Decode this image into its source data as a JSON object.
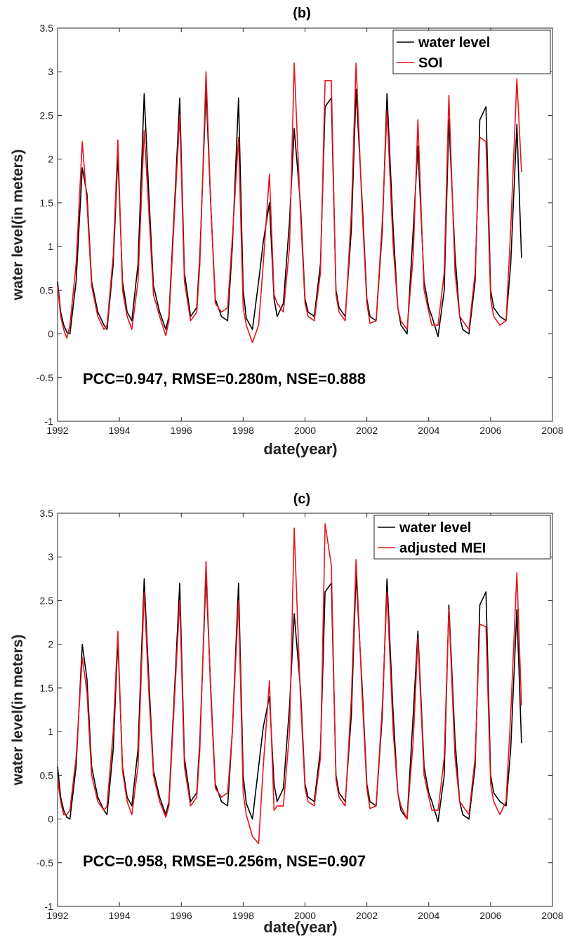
{
  "chart_data": [
    {
      "type": "line",
      "title": "(b)",
      "xlabel": "date(year)",
      "ylabel": "water level(in meters)",
      "xlim": [
        1992,
        2008
      ],
      "ylim": [
        -1,
        3.5
      ],
      "x_ticks": [
        "1992",
        "1994",
        "1996",
        "1998",
        "2000",
        "2002",
        "2004",
        "2006",
        "2008"
      ],
      "y_ticks": [
        "-1",
        "-0.5",
        "0",
        "0.5",
        "1",
        "1.5",
        "2",
        "2.5",
        "3",
        "3.5"
      ],
      "grid": false,
      "legend_position": "top-right",
      "annotation": "PCC=0.947, RMSE=0.280m, NSE=0.888",
      "series": [
        {
          "name": "water level",
          "color": "#000000",
          "x": [
            1992.0,
            1992.1,
            1992.2,
            1992.3,
            1992.4,
            1992.6,
            1992.8,
            1992.95,
            1993.1,
            1993.3,
            1993.5,
            1993.6,
            1993.8,
            1993.95,
            1994.1,
            1994.25,
            1994.4,
            1994.6,
            1994.8,
            1994.95,
            1995.1,
            1995.3,
            1995.5,
            1995.6,
            1995.8,
            1995.95,
            1996.1,
            1996.3,
            1996.5,
            1996.6,
            1996.8,
            1996.95,
            1997.1,
            1997.3,
            1997.5,
            1997.65,
            1997.85,
            1998.0,
            1998.1,
            1998.3,
            1998.5,
            1998.65,
            1998.85,
            1999.0,
            1999.1,
            1999.3,
            1999.5,
            1999.65,
            1999.85,
            2000.0,
            2000.1,
            2000.3,
            2000.5,
            2000.65,
            2000.85,
            2001.0,
            2001.1,
            2001.3,
            2001.5,
            2001.65,
            2001.85,
            2002.0,
            2002.1,
            2002.3,
            2002.5,
            2002.65,
            2002.85,
            2003.0,
            2003.1,
            2003.3,
            2003.5,
            2003.65,
            2003.85,
            2004.0,
            2004.1,
            2004.3,
            2004.5,
            2004.65,
            2004.85,
            2005.0,
            2005.1,
            2005.3,
            2005.5,
            2005.65,
            2005.85,
            2006.0,
            2006.1,
            2006.3,
            2006.5,
            2006.65,
            2006.85,
            2007.0
          ],
          "y": [
            0.6,
            0.25,
            0.1,
            0.02,
            0.0,
            0.6,
            1.9,
            1.6,
            0.6,
            0.25,
            0.1,
            0.05,
            0.8,
            2.05,
            0.6,
            0.25,
            0.15,
            0.8,
            2.75,
            1.6,
            0.55,
            0.25,
            0.05,
            0.2,
            1.6,
            2.7,
            0.7,
            0.2,
            0.3,
            0.9,
            2.8,
            1.5,
            0.4,
            0.2,
            0.15,
            1.0,
            2.7,
            0.5,
            0.18,
            0.05,
            0.6,
            1.05,
            1.5,
            0.4,
            0.2,
            0.35,
            1.3,
            2.35,
            1.5,
            0.4,
            0.25,
            0.2,
            0.8,
            2.6,
            2.7,
            0.5,
            0.3,
            0.2,
            1.2,
            2.8,
            1.5,
            0.4,
            0.2,
            0.15,
            1.2,
            2.75,
            1.2,
            0.3,
            0.1,
            0.0,
            1.2,
            2.15,
            0.6,
            0.3,
            0.2,
            -0.03,
            0.5,
            2.45,
            0.9,
            0.2,
            0.05,
            0.0,
            0.6,
            2.45,
            2.6,
            0.5,
            0.3,
            0.2,
            0.15,
            0.8,
            2.4,
            0.87
          ]
        },
        {
          "name": "SOI",
          "color": "#e8141b",
          "x": [
            1992.0,
            1992.1,
            1992.2,
            1992.3,
            1992.4,
            1992.6,
            1992.8,
            1992.95,
            1993.1,
            1993.3,
            1993.5,
            1993.6,
            1993.8,
            1993.95,
            1994.1,
            1994.25,
            1994.4,
            1994.6,
            1994.8,
            1994.95,
            1995.1,
            1995.3,
            1995.5,
            1995.6,
            1995.8,
            1995.95,
            1996.1,
            1996.3,
            1996.5,
            1996.6,
            1996.8,
            1996.95,
            1997.1,
            1997.3,
            1997.5,
            1997.65,
            1997.85,
            1998.0,
            1998.1,
            1998.3,
            1998.5,
            1998.65,
            1998.85,
            1999.0,
            1999.1,
            1999.3,
            1999.5,
            1999.65,
            1999.85,
            2000.0,
            2000.1,
            2000.3,
            2000.5,
            2000.65,
            2000.85,
            2001.0,
            2001.1,
            2001.3,
            2001.5,
            2001.65,
            2001.85,
            2002.0,
            2002.1,
            2002.3,
            2002.5,
            2002.65,
            2002.85,
            2003.0,
            2003.1,
            2003.3,
            2003.5,
            2003.65,
            2003.85,
            2004.0,
            2004.1,
            2004.3,
            2004.5,
            2004.65,
            2004.85,
            2005.0,
            2005.1,
            2005.3,
            2005.5,
            2005.65,
            2005.85,
            2006.0,
            2006.1,
            2006.3,
            2006.5,
            2006.65,
            2006.85,
            2007.0
          ],
          "y": [
            0.55,
            0.2,
            0.05,
            -0.05,
            0.1,
            0.8,
            2.2,
            1.5,
            0.55,
            0.2,
            0.05,
            0.1,
            0.9,
            2.22,
            0.5,
            0.2,
            0.05,
            0.6,
            2.33,
            1.4,
            0.45,
            0.2,
            -0.02,
            0.15,
            1.5,
            2.5,
            0.6,
            0.15,
            0.25,
            0.8,
            3.0,
            1.5,
            0.35,
            0.25,
            0.3,
            1.1,
            2.25,
            0.3,
            0.1,
            -0.1,
            0.1,
            0.8,
            1.83,
            0.45,
            0.35,
            0.25,
            1.0,
            3.1,
            1.4,
            0.35,
            0.2,
            0.15,
            0.7,
            2.9,
            2.9,
            0.45,
            0.25,
            0.15,
            1.4,
            3.1,
            1.4,
            0.35,
            0.12,
            0.15,
            1.3,
            2.55,
            1.0,
            0.3,
            0.15,
            0.05,
            0.9,
            2.45,
            0.5,
            0.25,
            0.1,
            0.1,
            0.7,
            2.73,
            0.7,
            0.2,
            0.15,
            0.05,
            0.7,
            2.25,
            2.2,
            0.4,
            0.2,
            0.1,
            0.15,
            1.2,
            2.92,
            1.85
          ]
        }
      ]
    },
    {
      "type": "line",
      "title": "(c)",
      "xlabel": "date(year)",
      "ylabel": "water level(in meters)",
      "xlim": [
        1992,
        2008
      ],
      "ylim": [
        -1,
        3.5
      ],
      "x_ticks": [
        "1992",
        "1994",
        "1996",
        "1998",
        "2000",
        "2002",
        "2004",
        "2006",
        "2008"
      ],
      "y_ticks": [
        "-1",
        "-0.5",
        "0",
        "0.5",
        "1",
        "1.5",
        "2",
        "2.5",
        "3",
        "3.5"
      ],
      "grid": false,
      "legend_position": "top-right",
      "annotation": "PCC=0.958, RMSE=0.256m, NSE=0.907",
      "series": [
        {
          "name": "water level",
          "color": "#000000",
          "x": [
            1992.0,
            1992.1,
            1992.2,
            1992.3,
            1992.4,
            1992.6,
            1992.8,
            1992.95,
            1993.1,
            1993.3,
            1993.5,
            1993.6,
            1993.8,
            1993.95,
            1994.1,
            1994.25,
            1994.4,
            1994.6,
            1994.8,
            1994.95,
            1995.1,
            1995.3,
            1995.5,
            1995.6,
            1995.8,
            1995.95,
            1996.1,
            1996.3,
            1996.5,
            1996.6,
            1996.8,
            1996.95,
            1997.1,
            1997.3,
            1997.5,
            1997.65,
            1997.85,
            1998.0,
            1998.1,
            1998.3,
            1998.5,
            1998.65,
            1998.85,
            1999.0,
            1999.1,
            1999.3,
            1999.5,
            1999.65,
            1999.85,
            2000.0,
            2000.1,
            2000.3,
            2000.5,
            2000.65,
            2000.85,
            2001.0,
            2001.1,
            2001.3,
            2001.5,
            2001.65,
            2001.85,
            2002.0,
            2002.1,
            2002.3,
            2002.5,
            2002.65,
            2002.85,
            2003.0,
            2003.1,
            2003.3,
            2003.5,
            2003.65,
            2003.85,
            2004.0,
            2004.1,
            2004.3,
            2004.5,
            2004.65,
            2004.85,
            2005.0,
            2005.1,
            2005.3,
            2005.5,
            2005.65,
            2005.85,
            2006.0,
            2006.1,
            2006.3,
            2006.5,
            2006.65,
            2006.85,
            2007.0
          ],
          "y": [
            0.6,
            0.25,
            0.1,
            0.02,
            0.0,
            0.6,
            2.0,
            1.6,
            0.6,
            0.25,
            0.1,
            0.05,
            0.8,
            2.05,
            0.6,
            0.25,
            0.15,
            0.8,
            2.75,
            1.6,
            0.55,
            0.25,
            0.05,
            0.2,
            1.6,
            2.7,
            0.7,
            0.2,
            0.3,
            0.9,
            2.8,
            1.5,
            0.4,
            0.2,
            0.15,
            1.0,
            2.7,
            0.5,
            0.18,
            0.0,
            0.6,
            1.05,
            1.4,
            0.4,
            0.2,
            0.35,
            1.3,
            2.35,
            1.5,
            0.4,
            0.25,
            0.2,
            0.8,
            2.6,
            2.7,
            0.5,
            0.3,
            0.2,
            1.2,
            2.8,
            1.5,
            0.4,
            0.2,
            0.15,
            1.2,
            2.75,
            1.2,
            0.3,
            0.1,
            0.0,
            1.2,
            2.15,
            0.6,
            0.3,
            0.2,
            -0.03,
            0.5,
            2.45,
            0.9,
            0.2,
            0.05,
            0.0,
            0.6,
            2.45,
            2.6,
            0.5,
            0.3,
            0.2,
            0.15,
            0.8,
            2.4,
            0.87
          ]
        },
        {
          "name": "adjusted MEI",
          "color": "#e8141b",
          "x": [
            1992.0,
            1992.1,
            1992.2,
            1992.3,
            1992.4,
            1992.6,
            1992.8,
            1992.95,
            1993.1,
            1993.3,
            1993.5,
            1993.6,
            1993.8,
            1993.95,
            1994.1,
            1994.25,
            1994.4,
            1994.6,
            1994.8,
            1994.95,
            1995.1,
            1995.3,
            1995.5,
            1995.6,
            1995.8,
            1995.95,
            1996.1,
            1996.3,
            1996.5,
            1996.6,
            1996.8,
            1996.95,
            1997.1,
            1997.3,
            1997.5,
            1997.65,
            1997.85,
            1998.0,
            1998.1,
            1998.3,
            1998.5,
            1998.65,
            1998.85,
            1999.0,
            1999.1,
            1999.3,
            1999.5,
            1999.65,
            1999.85,
            2000.0,
            2000.1,
            2000.3,
            2000.5,
            2000.65,
            2000.85,
            2001.0,
            2001.1,
            2001.3,
            2001.5,
            2001.65,
            2001.85,
            2002.0,
            2002.1,
            2002.3,
            2002.5,
            2002.65,
            2002.85,
            2003.0,
            2003.1,
            2003.3,
            2003.5,
            2003.65,
            2003.85,
            2004.0,
            2004.1,
            2004.3,
            2004.5,
            2004.65,
            2004.85,
            2005.0,
            2005.1,
            2005.3,
            2005.5,
            2005.65,
            2005.85,
            2006.0,
            2006.1,
            2006.3,
            2006.5,
            2006.65,
            2006.85,
            2007.0
          ],
          "y": [
            0.45,
            0.2,
            0.05,
            0.05,
            0.1,
            0.7,
            1.85,
            1.45,
            0.5,
            0.2,
            0.1,
            0.15,
            1.0,
            2.15,
            0.55,
            0.2,
            0.05,
            0.6,
            2.6,
            1.45,
            0.5,
            0.2,
            0.02,
            0.15,
            1.5,
            2.5,
            0.6,
            0.15,
            0.25,
            0.8,
            2.95,
            1.45,
            0.35,
            0.25,
            0.3,
            1.0,
            2.5,
            0.3,
            0.05,
            -0.2,
            -0.28,
            0.6,
            1.58,
            0.1,
            0.15,
            0.15,
            1.0,
            3.33,
            1.4,
            0.35,
            0.2,
            0.15,
            0.7,
            3.38,
            2.9,
            0.45,
            0.25,
            0.15,
            1.4,
            2.97,
            1.4,
            0.35,
            0.12,
            0.15,
            1.3,
            2.6,
            1.0,
            0.3,
            0.15,
            0.0,
            0.9,
            2.07,
            0.5,
            0.25,
            0.1,
            0.1,
            0.7,
            2.4,
            0.7,
            0.2,
            0.15,
            0.05,
            0.7,
            2.23,
            2.2,
            0.4,
            0.2,
            0.05,
            0.2,
            1.2,
            2.82,
            1.3
          ]
        }
      ]
    }
  ]
}
